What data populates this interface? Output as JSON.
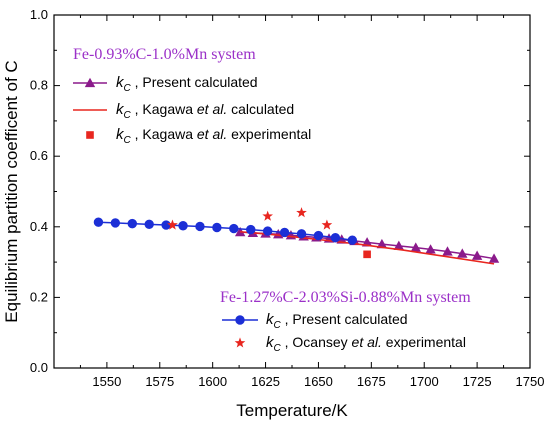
{
  "chart_data": {
    "type": "line",
    "title": "",
    "xlabel": "Temperature/K",
    "ylabel": "Equilibrium partition coefficent of C",
    "xlim": [
      1525,
      1750
    ],
    "ylim": [
      0.0,
      1.0
    ],
    "x_ticks": [
      "1550",
      "1575",
      "1600",
      "1625",
      "1650",
      "1675",
      "1700",
      "1725",
      "1750"
    ],
    "y_ticks": [
      "0.0",
      "0.2",
      "0.4",
      "0.6",
      "0.8",
      "1.0"
    ],
    "grid": false,
    "groups": [
      {
        "title": "Fe-0.93%C-1.0%Mn system",
        "title_color": "#9b30c8",
        "legend_position": "top-left",
        "legend": [
          {
            "symbol": "k",
            "subscript": "C",
            "prefix": " , ",
            "text": "Present calculated",
            "italic_part": "",
            "suffix": ""
          },
          {
            "symbol": "k",
            "subscript": "C",
            "prefix": " , Kagawa ",
            "italic_part": "et al.",
            "suffix": " calculated",
            "text": ""
          },
          {
            "symbol": "k",
            "subscript": "C",
            "prefix": " , Kagawa ",
            "italic_part": "et al.",
            "suffix": " experimental",
            "text": ""
          }
        ]
      },
      {
        "title": "Fe-1.27%C-2.03%Si-0.88%Mn system",
        "title_color": "#9b30c8",
        "legend_position": "bottom-right",
        "legend": [
          {
            "symbol": "k",
            "subscript": "C",
            "prefix": " , ",
            "text": "Present calculated",
            "italic_part": "",
            "suffix": ""
          },
          {
            "symbol": "k",
            "subscript": "C",
            "prefix": " , Ocansey ",
            "italic_part": "et al.",
            "suffix": " experimental",
            "text": ""
          }
        ]
      }
    ],
    "series": [
      {
        "marker": "triangle",
        "line": true,
        "color": "#8b1a8b",
        "x": [
          1613,
          1619,
          1625,
          1631,
          1637,
          1643,
          1649,
          1655,
          1661,
          1667,
          1673,
          1680,
          1688,
          1696,
          1703,
          1711,
          1718,
          1725,
          1733
        ],
        "y": [
          0.385,
          0.383,
          0.381,
          0.379,
          0.376,
          0.373,
          0.37,
          0.367,
          0.364,
          0.36,
          0.356,
          0.351,
          0.346,
          0.341,
          0.336,
          0.33,
          0.324,
          0.318,
          0.31
        ]
      },
      {
        "marker": "none",
        "line": true,
        "color": "#e8261f",
        "x": [
          1613,
          1630,
          1650,
          1670,
          1690,
          1710,
          1733
        ],
        "y": [
          0.386,
          0.377,
          0.364,
          0.35,
          0.334,
          0.316,
          0.295
        ]
      },
      {
        "marker": "square",
        "line": false,
        "color": "#e8261f",
        "x": [
          1673
        ],
        "y": [
          0.322
        ]
      },
      {
        "marker": "circle",
        "line": true,
        "color": "#1c2fd6",
        "x": [
          1546,
          1554,
          1562,
          1570,
          1578,
          1586,
          1594,
          1602,
          1610,
          1618,
          1626,
          1634,
          1642,
          1650,
          1658,
          1666
        ],
        "y": [
          0.413,
          0.411,
          0.409,
          0.407,
          0.405,
          0.403,
          0.401,
          0.398,
          0.395,
          0.392,
          0.388,
          0.384,
          0.38,
          0.375,
          0.369,
          0.362
        ]
      },
      {
        "marker": "star",
        "line": false,
        "color": "#e8261f",
        "x": [
          1581,
          1626,
          1642,
          1654
        ],
        "y": [
          0.405,
          0.43,
          0.44,
          0.405
        ]
      }
    ]
  }
}
